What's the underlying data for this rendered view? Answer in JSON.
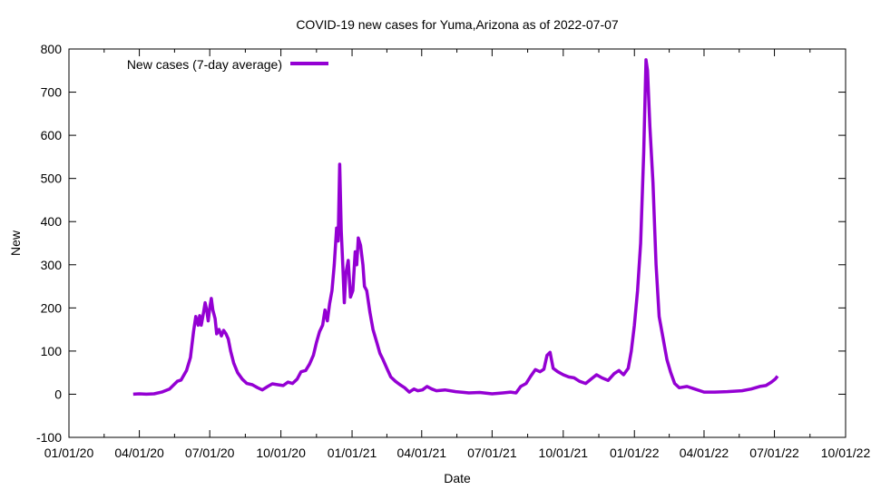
{
  "chart_data": {
    "type": "line",
    "title": "COVID-19 new cases for Yuma,Arizona as of 2022-07-07",
    "xlabel": "Date",
    "ylabel": "New",
    "ylim": [
      -100,
      800
    ],
    "yticks": [
      -100,
      0,
      100,
      200,
      300,
      400,
      500,
      600,
      700,
      800
    ],
    "xlim": [
      "2020-01-01",
      "2022-10-01"
    ],
    "xticks": [
      {
        "date": "2020-01-01",
        "label": "01/01/20"
      },
      {
        "date": "2020-04-01",
        "label": "04/01/20"
      },
      {
        "date": "2020-07-01",
        "label": "07/01/20"
      },
      {
        "date": "2020-10-01",
        "label": "10/01/20"
      },
      {
        "date": "2021-01-01",
        "label": "01/01/21"
      },
      {
        "date": "2021-04-01",
        "label": "04/01/21"
      },
      {
        "date": "2021-07-01",
        "label": "07/01/21"
      },
      {
        "date": "2021-10-01",
        "label": "10/01/21"
      },
      {
        "date": "2022-01-01",
        "label": "01/01/22"
      },
      {
        "date": "2022-04-01",
        "label": "04/01/22"
      },
      {
        "date": "2022-07-01",
        "label": "07/01/22"
      },
      {
        "date": "2022-10-01",
        "label": "10/01/22"
      }
    ],
    "grid": false,
    "legend_position": "top-left",
    "series": [
      {
        "name": "New cases (7-day average)",
        "color": "#9400d3",
        "points": [
          [
            "2020-03-24",
            0
          ],
          [
            "2020-04-01",
            1
          ],
          [
            "2020-04-10",
            0
          ],
          [
            "2020-04-20",
            1
          ],
          [
            "2020-04-30",
            5
          ],
          [
            "2020-05-10",
            12
          ],
          [
            "2020-05-20",
            30
          ],
          [
            "2020-05-25",
            33
          ],
          [
            "2020-06-01",
            55
          ],
          [
            "2020-06-06",
            85
          ],
          [
            "2020-06-10",
            145
          ],
          [
            "2020-06-13",
            180
          ],
          [
            "2020-06-16",
            160
          ],
          [
            "2020-06-18",
            182
          ],
          [
            "2020-06-20",
            160
          ],
          [
            "2020-06-23",
            190
          ],
          [
            "2020-06-25",
            212
          ],
          [
            "2020-06-27",
            195
          ],
          [
            "2020-06-29",
            170
          ],
          [
            "2020-07-01",
            200
          ],
          [
            "2020-07-03",
            222
          ],
          [
            "2020-07-05",
            195
          ],
          [
            "2020-07-08",
            175
          ],
          [
            "2020-07-10",
            140
          ],
          [
            "2020-07-13",
            150
          ],
          [
            "2020-07-16",
            135
          ],
          [
            "2020-07-19",
            148
          ],
          [
            "2020-07-22",
            140
          ],
          [
            "2020-07-25",
            128
          ],
          [
            "2020-07-28",
            100
          ],
          [
            "2020-08-01",
            72
          ],
          [
            "2020-08-06",
            50
          ],
          [
            "2020-08-12",
            35
          ],
          [
            "2020-08-18",
            25
          ],
          [
            "2020-08-25",
            22
          ],
          [
            "2020-09-01",
            15
          ],
          [
            "2020-09-07",
            10
          ],
          [
            "2020-09-14",
            18
          ],
          [
            "2020-09-20",
            24
          ],
          [
            "2020-09-27",
            22
          ],
          [
            "2020-10-04",
            20
          ],
          [
            "2020-10-10",
            28
          ],
          [
            "2020-10-16",
            25
          ],
          [
            "2020-10-22",
            35
          ],
          [
            "2020-10-27",
            52
          ],
          [
            "2020-11-02",
            55
          ],
          [
            "2020-11-07",
            70
          ],
          [
            "2020-11-12",
            90
          ],
          [
            "2020-11-16",
            120
          ],
          [
            "2020-11-20",
            145
          ],
          [
            "2020-11-24",
            160
          ],
          [
            "2020-11-27",
            195
          ],
          [
            "2020-11-30",
            170
          ],
          [
            "2020-12-03",
            210
          ],
          [
            "2020-12-06",
            240
          ],
          [
            "2020-12-09",
            300
          ],
          [
            "2020-12-12",
            385
          ],
          [
            "2020-12-14",
            355
          ],
          [
            "2020-12-16",
            533
          ],
          [
            "2020-12-18",
            380
          ],
          [
            "2020-12-20",
            300
          ],
          [
            "2020-12-22",
            212
          ],
          [
            "2020-12-24",
            280
          ],
          [
            "2020-12-27",
            310
          ],
          [
            "2020-12-30",
            225
          ],
          [
            "2021-01-02",
            240
          ],
          [
            "2021-01-05",
            330
          ],
          [
            "2021-01-07",
            300
          ],
          [
            "2021-01-09",
            362
          ],
          [
            "2021-01-12",
            345
          ],
          [
            "2021-01-15",
            300
          ],
          [
            "2021-01-17",
            250
          ],
          [
            "2021-01-20",
            240
          ],
          [
            "2021-01-24",
            190
          ],
          [
            "2021-01-28",
            150
          ],
          [
            "2021-02-02",
            120
          ],
          [
            "2021-02-06",
            95
          ],
          [
            "2021-02-10",
            80
          ],
          [
            "2021-02-15",
            60
          ],
          [
            "2021-02-20",
            40
          ],
          [
            "2021-02-26",
            30
          ],
          [
            "2021-03-04",
            22
          ],
          [
            "2021-03-10",
            15
          ],
          [
            "2021-03-16",
            5
          ],
          [
            "2021-03-22",
            12
          ],
          [
            "2021-03-27",
            8
          ],
          [
            "2021-04-02",
            10
          ],
          [
            "2021-04-08",
            18
          ],
          [
            "2021-04-14",
            12
          ],
          [
            "2021-04-20",
            8
          ],
          [
            "2021-05-01",
            10
          ],
          [
            "2021-05-15",
            6
          ],
          [
            "2021-06-01",
            3
          ],
          [
            "2021-06-15",
            4
          ],
          [
            "2021-07-01",
            1
          ],
          [
            "2021-07-15",
            3
          ],
          [
            "2021-07-25",
            5
          ],
          [
            "2021-08-01",
            3
          ],
          [
            "2021-08-07",
            18
          ],
          [
            "2021-08-14",
            25
          ],
          [
            "2021-08-20",
            42
          ],
          [
            "2021-08-26",
            57
          ],
          [
            "2021-09-01",
            52
          ],
          [
            "2021-09-06",
            58
          ],
          [
            "2021-09-10",
            90
          ],
          [
            "2021-09-14",
            97
          ],
          [
            "2021-09-18",
            60
          ],
          [
            "2021-09-24",
            52
          ],
          [
            "2021-10-01",
            45
          ],
          [
            "2021-10-08",
            40
          ],
          [
            "2021-10-15",
            38
          ],
          [
            "2021-10-22",
            30
          ],
          [
            "2021-10-30",
            25
          ],
          [
            "2021-11-06",
            35
          ],
          [
            "2021-11-13",
            45
          ],
          [
            "2021-11-20",
            38
          ],
          [
            "2021-11-28",
            32
          ],
          [
            "2021-12-06",
            48
          ],
          [
            "2021-12-12",
            55
          ],
          [
            "2021-12-18",
            45
          ],
          [
            "2021-12-24",
            60
          ],
          [
            "2021-12-28",
            100
          ],
          [
            "2022-01-01",
            160
          ],
          [
            "2022-01-05",
            240
          ],
          [
            "2022-01-09",
            350
          ],
          [
            "2022-01-13",
            560
          ],
          [
            "2022-01-16",
            775
          ],
          [
            "2022-01-18",
            750
          ],
          [
            "2022-01-21",
            620
          ],
          [
            "2022-01-25",
            490
          ],
          [
            "2022-01-29",
            300
          ],
          [
            "2022-02-02",
            180
          ],
          [
            "2022-02-07",
            130
          ],
          [
            "2022-02-12",
            80
          ],
          [
            "2022-02-17",
            50
          ],
          [
            "2022-02-22",
            25
          ],
          [
            "2022-02-28",
            15
          ],
          [
            "2022-03-10",
            18
          ],
          [
            "2022-03-20",
            12
          ],
          [
            "2022-04-01",
            5
          ],
          [
            "2022-04-15",
            5
          ],
          [
            "2022-05-01",
            6
          ],
          [
            "2022-05-20",
            8
          ],
          [
            "2022-06-01",
            12
          ],
          [
            "2022-06-12",
            18
          ],
          [
            "2022-06-20",
            20
          ],
          [
            "2022-06-27",
            28
          ],
          [
            "2022-07-02",
            35
          ],
          [
            "2022-07-05",
            42
          ]
        ]
      }
    ]
  }
}
